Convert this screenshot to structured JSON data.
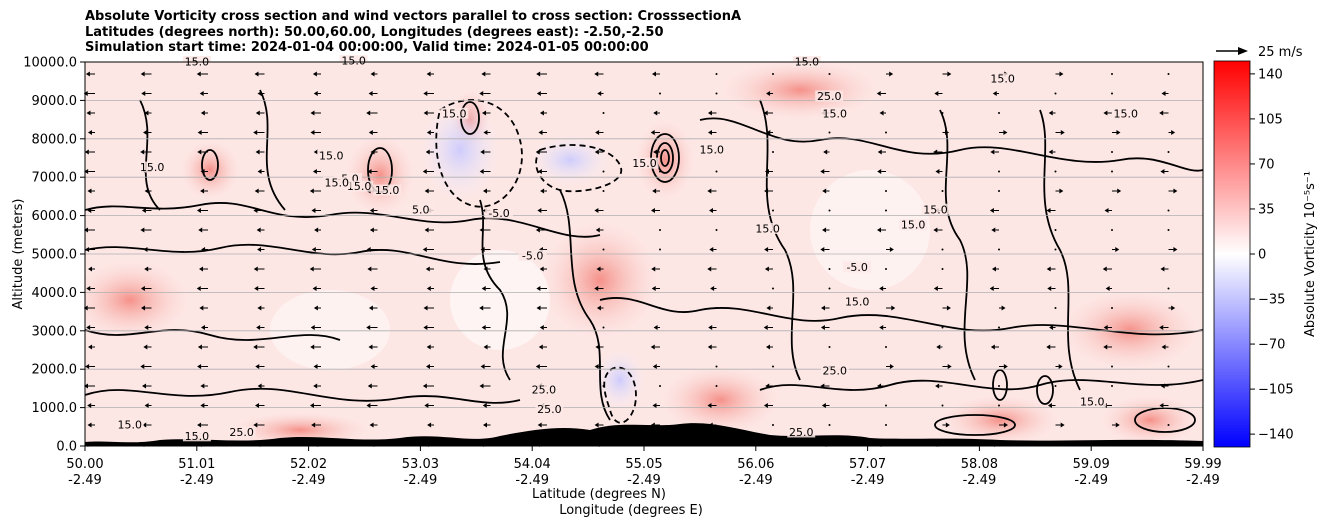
{
  "title_lines": [
    "Absolute Vorticity cross section and wind vectors parallel to cross section: CrosssectionA",
    "Latitudes (degrees north): 50.00,60.00, Longitudes (degrees east): -2.50,-2.50",
    "Simulation start time: 2024-01-04 00:00:00, Valid time: 2024-01-05 00:00:00"
  ],
  "chart_data": {
    "type": "heatmap",
    "title": "Absolute Vorticity cross section and wind vectors parallel to cross section: CrosssectionA",
    "ylabel": "Altitude (meters)",
    "xlabel_lines": [
      "Latitude (degrees N)",
      "Longitude (degrees E)"
    ],
    "ylim": [
      0,
      10000
    ],
    "xlim": [
      50.0,
      59.99
    ],
    "y_ticks": [
      0,
      1000,
      2000,
      3000,
      4000,
      5000,
      6000,
      7000,
      8000,
      9000,
      10000
    ],
    "y_tick_labels": [
      "0.0",
      "1000.0",
      "2000.0",
      "3000.0",
      "4000.0",
      "5000.0",
      "6000.0",
      "7000.0",
      "8000.0",
      "9000.0",
      "10000.0"
    ],
    "x_ticks": [
      {
        "lat": "50.00",
        "lon": "-2.49"
      },
      {
        "lat": "51.01",
        "lon": "-2.49"
      },
      {
        "lat": "52.02",
        "lon": "-2.49"
      },
      {
        "lat": "53.03",
        "lon": "-2.49"
      },
      {
        "lat": "54.04",
        "lon": "-2.49"
      },
      {
        "lat": "55.05",
        "lon": "-2.49"
      },
      {
        "lat": "56.06",
        "lon": "-2.49"
      },
      {
        "lat": "57.07",
        "lon": "-2.49"
      },
      {
        "lat": "58.08",
        "lon": "-2.49"
      },
      {
        "lat": "59.09",
        "lon": "-2.49"
      },
      {
        "lat": "59.99",
        "lon": "-2.49"
      }
    ],
    "colorbar": {
      "label": "Absolute Vorticity 10⁻⁵s⁻¹",
      "range": [
        -150,
        150
      ],
      "ticks": [
        140,
        105,
        70,
        35,
        0,
        -35,
        -70,
        -105,
        -140
      ],
      "tick_labels": [
        "140",
        "105",
        "70",
        "35",
        "0",
        "−35",
        "−70",
        "−105",
        "−140"
      ],
      "colors": {
        "low": "#0000ff",
        "mid": "#ffffff",
        "high": "#ff0000"
      }
    },
    "quiver_key": {
      "label": "25 m/s",
      "speed": 25
    },
    "grid": true,
    "contour_levels": [
      -5.0,
      5.0,
      15.0,
      25.0,
      35.0
    ],
    "contour_labels": [
      {
        "text": "15.0",
        "lat": 51.0,
        "alt": 9950
      },
      {
        "text": "15.0",
        "lat": 52.4,
        "alt": 9970
      },
      {
        "text": "15.0",
        "lat": 56.45,
        "alt": 9950
      },
      {
        "text": "15.0",
        "lat": 58.2,
        "alt": 9500
      },
      {
        "text": "15.0",
        "lat": 53.3,
        "alt": 8600
      },
      {
        "text": "25.0",
        "lat": 56.65,
        "alt": 9050
      },
      {
        "text": "15.0",
        "lat": 56.7,
        "alt": 8600
      },
      {
        "text": "15.0",
        "lat": 59.3,
        "alt": 8600
      },
      {
        "text": "15.0",
        "lat": 55.6,
        "alt": 7650
      },
      {
        "text": "15.0",
        "lat": 55.0,
        "alt": 7300
      },
      {
        "text": "15.0",
        "lat": 50.6,
        "alt": 7200
      },
      {
        "text": "-5.0",
        "lat": 52.35,
        "alt": 6900
      },
      {
        "text": "15.0",
        "lat": 52.45,
        "alt": 6700
      },
      {
        "text": "15.0",
        "lat": 52.25,
        "alt": 6800
      },
      {
        "text": "5.0",
        "lat": 53.0,
        "alt": 6100
      },
      {
        "text": "15.0",
        "lat": 52.2,
        "alt": 7500
      },
      {
        "text": "15.0",
        "lat": 52.7,
        "alt": 6600
      },
      {
        "text": "-5.0",
        "lat": 53.7,
        "alt": 6000
      },
      {
        "text": "-5.0",
        "lat": 54.0,
        "alt": 4900
      },
      {
        "text": "15.0",
        "lat": 56.1,
        "alt": 5600
      },
      {
        "text": "15.0",
        "lat": 57.6,
        "alt": 6100
      },
      {
        "text": "15.0",
        "lat": 57.4,
        "alt": 5700
      },
      {
        "text": "-5.0",
        "lat": 56.9,
        "alt": 4600
      },
      {
        "text": "15.0",
        "lat": 56.9,
        "alt": 3700
      },
      {
        "text": "25.0",
        "lat": 56.7,
        "alt": 1900
      },
      {
        "text": "15.0",
        "lat": 59.0,
        "alt": 1100
      },
      {
        "text": "15.0",
        "lat": 50.4,
        "alt": 500
      },
      {
        "text": "25.0",
        "lat": 51.4,
        "alt": 300
      },
      {
        "text": "15.0",
        "lat": 51.0,
        "alt": 200
      },
      {
        "text": "25.0",
        "lat": 54.15,
        "alt": 900
      },
      {
        "text": "25.0",
        "lat": 54.1,
        "alt": 1400
      },
      {
        "text": "25.0",
        "lat": 56.4,
        "alt": 300
      }
    ]
  }
}
